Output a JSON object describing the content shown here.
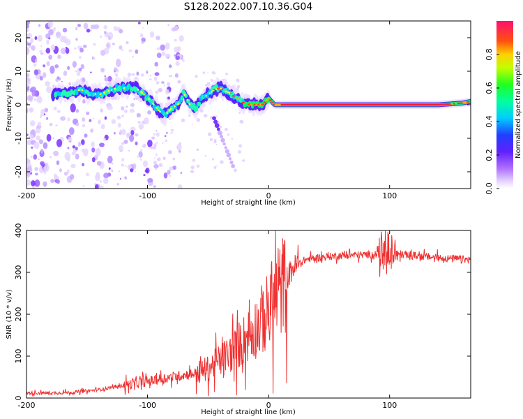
{
  "title": "S128.2022.007.10.36.G04",
  "chart_data": [
    {
      "type": "heatmap",
      "xlabel": "Height of straight line (km)",
      "ylabel": "Frequency (Hz)",
      "xlim": [
        -200,
        167
      ],
      "ylim": [
        -25,
        25
      ],
      "xticks": [
        -200,
        -100,
        0,
        100
      ],
      "yticks": [
        -20,
        -10,
        0,
        10,
        20
      ],
      "colorbar": {
        "label": "Normalized spectral amplitude",
        "range": [
          0,
          1
        ],
        "ticks": [
          "0.0",
          "0.2",
          "0.4",
          "0.6",
          "0.8"
        ],
        "colors": [
          "#e8d8ff",
          "#9b30ff",
          "#3020ff",
          "#00e8ff",
          "#00ff40",
          "#ffe000",
          "#ff2020",
          "#ff1060"
        ]
      },
      "ridge": {
        "x": [
          -175,
          -165,
          -155,
          -148,
          -140,
          -133,
          -125,
          -118,
          -110,
          -104,
          -97,
          -90,
          -85,
          -80,
          -75,
          -70,
          -65,
          -60,
          -55,
          -50,
          -45,
          -40,
          -35,
          -30,
          -25,
          -20,
          -15,
          -10,
          -5,
          0,
          5,
          10,
          20,
          40,
          60,
          80,
          100,
          120,
          140,
          160,
          167
        ],
        "y": [
          3,
          3.5,
          4.5,
          3.5,
          3,
          4,
          5,
          5,
          5,
          3.5,
          1,
          -2,
          -3,
          -1,
          0,
          3.5,
          0,
          -1,
          2,
          3,
          4.5,
          5,
          4,
          3,
          1.5,
          0.5,
          0,
          0,
          0,
          2,
          0,
          0,
          0,
          0,
          0,
          0,
          0,
          0,
          0,
          0.5,
          1
        ]
      }
    },
    {
      "type": "line",
      "xlabel": "Height of straight line (km)",
      "ylabel": "SNR (10 * v/v)",
      "xlim": [
        -200,
        167
      ],
      "ylim": [
        0,
        400
      ],
      "xticks": [
        -200,
        -100,
        0,
        100
      ],
      "yticks": [
        0,
        100,
        200,
        300,
        400
      ],
      "color": "#ee3030",
      "series": [
        {
          "x": [
            -200,
            -180,
            -160,
            -140,
            -120,
            -100,
            -80,
            -60,
            -50,
            -40,
            -30,
            -20,
            -10,
            0,
            10,
            20,
            30,
            40,
            60,
            80,
            100,
            120,
            140,
            167
          ],
          "y": [
            12,
            12,
            14,
            20,
            30,
            40,
            50,
            60,
            70,
            90,
            110,
            140,
            170,
            210,
            260,
            310,
            330,
            335,
            340,
            342,
            345,
            340,
            335,
            330
          ]
        }
      ]
    }
  ]
}
